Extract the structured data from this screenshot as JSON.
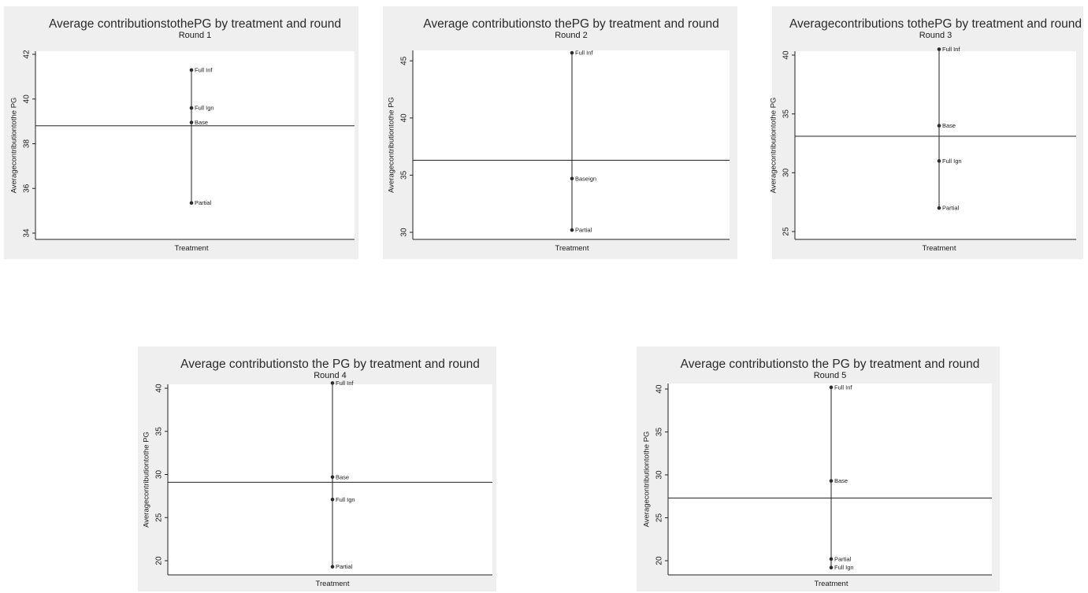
{
  "chart_data": [
    {
      "type": "scatter",
      "title": "Average contributionstothePG by treatment and round",
      "subtitle": "Round 1",
      "xlabel": "Treatment",
      "ylabel": "Averagecontributiontothe PG",
      "ylim": [
        34,
        42
      ],
      "yticks": [
        "34",
        "36",
        "38",
        "40",
        "42"
      ],
      "points": [
        {
          "label": "Full Inf",
          "value": 41.3
        },
        {
          "label": "Full Ign",
          "value": 39.6
        },
        {
          "label": "Base",
          "value": 38.95
        },
        {
          "label": "Partial",
          "value": 35.35
        }
      ],
      "mean": 38.8
    },
    {
      "type": "scatter",
      "title": "Average contributionsto thePG by treatment and round",
      "subtitle": "Round 2",
      "xlabel": "Treatment",
      "ylabel": "Averagecontributiontothe PG",
      "ylim": [
        30,
        45.5
      ],
      "yticks": [
        "30",
        "35",
        "40",
        "45"
      ],
      "points": [
        {
          "label": "Full Inf",
          "value": 45.7
        },
        {
          "label": "Baseign",
          "value": 34.7
        },
        {
          "label": "Partial",
          "value": 30.2
        }
      ],
      "mean": 36.3
    },
    {
      "type": "scatter",
      "title": "Averagecontributions tothePG by treatment and round",
      "subtitle": "Round 3",
      "xlabel": "Treatment",
      "ylabel": "Averagecontributiontothe PG",
      "ylim": [
        25,
        40
      ],
      "yticks": [
        "25",
        "30",
        "35",
        "40"
      ],
      "points": [
        {
          "label": "Full Inf",
          "value": 40.5
        },
        {
          "label": "Base",
          "value": 34.0
        },
        {
          "label": "Full Ign",
          "value": 31.0
        },
        {
          "label": "Partial",
          "value": 27.0
        }
      ],
      "mean": 33.1
    },
    {
      "type": "scatter",
      "title": "Average contributionsto the PG by treatment and round",
      "subtitle": "Round 4",
      "xlabel": "Treatment",
      "ylabel": "Averagecontributiontothe PG",
      "ylim": [
        20,
        40
      ],
      "yticks": [
        "20",
        "25",
        "30",
        "35",
        "40"
      ],
      "points": [
        {
          "label": "Full Inf",
          "value": 40.6
        },
        {
          "label": "Base",
          "value": 29.7
        },
        {
          "label": "Full Ign",
          "value": 27.1
        },
        {
          "label": "Partial",
          "value": 19.3
        }
      ],
      "mean": 29.1
    },
    {
      "type": "scatter",
      "title": "Average contributionsto the PG by treatment and round",
      "subtitle": "Round 5",
      "xlabel": "Treatment",
      "ylabel": "Averagecontributiontothe PG",
      "ylim": [
        20,
        40
      ],
      "yticks": [
        "20",
        "25",
        "30",
        "35",
        "40"
      ],
      "points": [
        {
          "label": "Full Inf",
          "value": 40.2
        },
        {
          "label": "Base",
          "value": 29.3
        },
        {
          "label": "Partial",
          "value": 20.2
        },
        {
          "label": "Full Ign",
          "value": 19.2
        }
      ],
      "mean": 27.3
    }
  ]
}
